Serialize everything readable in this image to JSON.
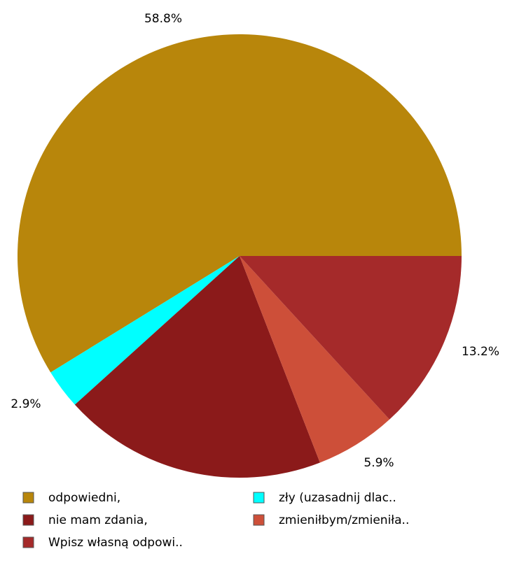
{
  "chart_data": {
    "type": "pie",
    "title": "",
    "slices": [
      {
        "label": "odpowiedni,",
        "value": 58.8,
        "percent_label": "58.8%",
        "color": "#B8860B"
      },
      {
        "label": "zły (uzasadnij dlac..",
        "value": 2.9,
        "percent_label": "2.9%",
        "color": "#00FFFF"
      },
      {
        "label": "nie mam zdania,",
        "value": 19.2,
        "percent_label": "",
        "color": "#8B1A1A"
      },
      {
        "label": "zmieniłbym/zmieniła..",
        "value": 5.9,
        "percent_label": "5.9%",
        "color": "#CD4F39"
      },
      {
        "label": "Wpisz własną odpowi..",
        "value": 13.2,
        "percent_label": "13.2%",
        "color": "#A52A2A"
      }
    ],
    "legend": {
      "placement": "bottom",
      "entries": [
        {
          "label": "odpowiedni,",
          "color": "#B8860B"
        },
        {
          "label": "zły (uzasadnij dlac..",
          "color": "#00FFFF"
        },
        {
          "label": "nie mam zdania,",
          "color": "#8B1A1A"
        },
        {
          "label": "zmieniłbym/zmieniła..",
          "color": "#CD4F39"
        },
        {
          "label": "Wpisz własną odpowi..",
          "color": "#A52A2A"
        }
      ]
    }
  }
}
